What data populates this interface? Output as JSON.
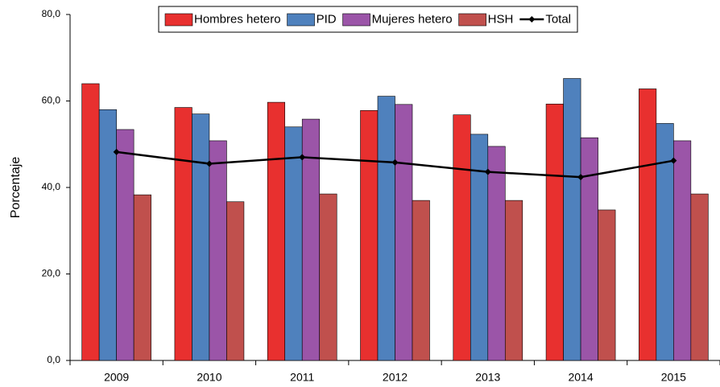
{
  "chart_data": {
    "type": "bar",
    "y_label": "Porcentaje",
    "categories": [
      "2009",
      "2010",
      "2011",
      "2012",
      "2013",
      "2014",
      "2015"
    ],
    "series": [
      {
        "name": "Hombres hetero",
        "color": "#e8302f",
        "values": [
          64.0,
          58.5,
          59.7,
          57.8,
          56.8,
          59.3,
          62.8
        ]
      },
      {
        "name": "PID",
        "color": "#4f81bd",
        "values": [
          58.0,
          57.0,
          54.0,
          61.1,
          52.3,
          65.2,
          54.8
        ]
      },
      {
        "name": "Mujeres hetero",
        "color": "#9b55a8",
        "values": [
          53.4,
          50.8,
          55.8,
          59.2,
          49.5,
          51.5,
          50.8
        ]
      },
      {
        "name": "HSH",
        "color": "#c0504d",
        "values": [
          38.3,
          36.7,
          38.5,
          37.0,
          37.0,
          34.8,
          38.5
        ]
      },
      {
        "name": "Total",
        "type": "line",
        "color": "#000000",
        "values": [
          48.2,
          45.5,
          47.0,
          45.8,
          43.6,
          42.4,
          46.2
        ]
      }
    ],
    "ylim": [
      0,
      80
    ],
    "yticks": [
      {
        "value": 0,
        "label": "0,0"
      },
      {
        "value": 20,
        "label": "20,0"
      },
      {
        "value": 40,
        "label": "40,0"
      },
      {
        "value": 60,
        "label": "60,0"
      },
      {
        "value": 80,
        "label": "80,0"
      }
    ],
    "legend": "top"
  }
}
